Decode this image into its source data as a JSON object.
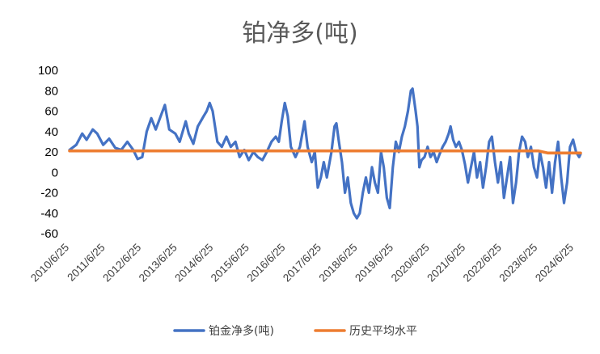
{
  "chart_data": {
    "type": "line",
    "title": "铂净多(吨)",
    "xlabel": "",
    "ylabel": "",
    "ylim": [
      -60,
      100
    ],
    "yticks": [
      -60,
      -40,
      -20,
      0,
      20,
      40,
      60,
      80,
      100
    ],
    "xlim": [
      "2010-06-25",
      "2024-08-30"
    ],
    "xtick_labels": [
      "2010/6/25",
      "2011/6/25",
      "2012/6/25",
      "2013/6/25",
      "2014/6/25",
      "2015/6/25",
      "2016/6/25",
      "2017/6/25",
      "2018/6/25",
      "2019/6/25",
      "2020/6/25",
      "2021/6/25",
      "2022/6/25",
      "2023/6/25",
      "2024/6/25"
    ],
    "grid": false,
    "legend": "bottom",
    "series": [
      {
        "name": "铂金净多(吨)",
        "color": "#4472C4",
        "points": [
          [
            "2010-06-25",
            22
          ],
          [
            "2010-09-01",
            27
          ],
          [
            "2010-11-01",
            38
          ],
          [
            "2010-12-15",
            32
          ],
          [
            "2011-02-15",
            42
          ],
          [
            "2011-04-01",
            38
          ],
          [
            "2011-06-01",
            27
          ],
          [
            "2011-08-01",
            33
          ],
          [
            "2011-10-01",
            24
          ],
          [
            "2011-12-01",
            22
          ],
          [
            "2012-02-01",
            30
          ],
          [
            "2012-04-01",
            22
          ],
          [
            "2012-05-15",
            13
          ],
          [
            "2012-07-01",
            15
          ],
          [
            "2012-08-15",
            40
          ],
          [
            "2012-10-01",
            53
          ],
          [
            "2012-11-15",
            42
          ],
          [
            "2013-01-15",
            58
          ],
          [
            "2013-02-15",
            66
          ],
          [
            "2013-04-01",
            42
          ],
          [
            "2013-06-01",
            38
          ],
          [
            "2013-07-15",
            30
          ],
          [
            "2013-09-15",
            50
          ],
          [
            "2013-10-15",
            38
          ],
          [
            "2013-12-01",
            28
          ],
          [
            "2014-01-15",
            45
          ],
          [
            "2014-03-15",
            55
          ],
          [
            "2014-04-15",
            60
          ],
          [
            "2014-05-15",
            68
          ],
          [
            "2014-06-15",
            60
          ],
          [
            "2014-08-01",
            30
          ],
          [
            "2014-09-15",
            25
          ],
          [
            "2014-11-01",
            35
          ],
          [
            "2014-12-15",
            25
          ],
          [
            "2015-02-01",
            30
          ],
          [
            "2015-03-15",
            15
          ],
          [
            "2015-05-01",
            22
          ],
          [
            "2015-06-15",
            12
          ],
          [
            "2015-08-01",
            20
          ],
          [
            "2015-09-15",
            15
          ],
          [
            "2015-11-01",
            12
          ],
          [
            "2015-12-15",
            20
          ],
          [
            "2016-02-01",
            30
          ],
          [
            "2016-03-15",
            35
          ],
          [
            "2016-04-15",
            30
          ],
          [
            "2016-05-15",
            50
          ],
          [
            "2016-06-15",
            68
          ],
          [
            "2016-07-15",
            55
          ],
          [
            "2016-08-15",
            25
          ],
          [
            "2016-10-01",
            15
          ],
          [
            "2016-11-15",
            25
          ],
          [
            "2017-01-01",
            50
          ],
          [
            "2017-02-01",
            25
          ],
          [
            "2017-03-15",
            10
          ],
          [
            "2017-04-15",
            20
          ],
          [
            "2017-05-15",
            -15
          ],
          [
            "2017-06-15",
            -5
          ],
          [
            "2017-07-15",
            10
          ],
          [
            "2017-08-15",
            -5
          ],
          [
            "2017-10-01",
            20
          ],
          [
            "2017-11-01",
            45
          ],
          [
            "2017-11-20",
            48
          ],
          [
            "2017-12-15",
            30
          ],
          [
            "2018-01-15",
            10
          ],
          [
            "2018-02-15",
            -20
          ],
          [
            "2018-03-15",
            -5
          ],
          [
            "2018-04-15",
            -30
          ],
          [
            "2018-05-15",
            -40
          ],
          [
            "2018-06-15",
            -45
          ],
          [
            "2018-07-15",
            -40
          ],
          [
            "2018-08-15",
            -20
          ],
          [
            "2018-09-15",
            -5
          ],
          [
            "2018-10-15",
            -20
          ],
          [
            "2018-11-15",
            5
          ],
          [
            "2018-12-15",
            -10
          ],
          [
            "2019-01-15",
            -20
          ],
          [
            "2019-02-15",
            20
          ],
          [
            "2019-03-15",
            5
          ],
          [
            "2019-04-15",
            -25
          ],
          [
            "2019-05-15",
            -35
          ],
          [
            "2019-06-15",
            5
          ],
          [
            "2019-07-15",
            30
          ],
          [
            "2019-08-15",
            20
          ],
          [
            "2019-09-15",
            35
          ],
          [
            "2019-10-15",
            45
          ],
          [
            "2019-11-15",
            60
          ],
          [
            "2019-12-15",
            80
          ],
          [
            "2020-01-01",
            82
          ],
          [
            "2020-02-01",
            60
          ],
          [
            "2020-02-20",
            45
          ],
          [
            "2020-03-10",
            5
          ],
          [
            "2020-04-01",
            12
          ],
          [
            "2020-05-01",
            15
          ],
          [
            "2020-06-01",
            25
          ],
          [
            "2020-07-01",
            15
          ],
          [
            "2020-08-01",
            20
          ],
          [
            "2020-09-01",
            10
          ],
          [
            "2020-10-01",
            18
          ],
          [
            "2020-11-01",
            25
          ],
          [
            "2020-12-01",
            30
          ],
          [
            "2021-01-01",
            38
          ],
          [
            "2021-01-20",
            45
          ],
          [
            "2021-02-15",
            32
          ],
          [
            "2021-03-15",
            25
          ],
          [
            "2021-04-15",
            30
          ],
          [
            "2021-05-15",
            22
          ],
          [
            "2021-06-15",
            8
          ],
          [
            "2021-07-15",
            -10
          ],
          [
            "2021-08-15",
            5
          ],
          [
            "2021-09-15",
            20
          ],
          [
            "2021-10-15",
            -5
          ],
          [
            "2021-11-15",
            10
          ],
          [
            "2021-12-15",
            -15
          ],
          [
            "2022-01-15",
            5
          ],
          [
            "2022-02-15",
            30
          ],
          [
            "2022-03-15",
            35
          ],
          [
            "2022-04-15",
            10
          ],
          [
            "2022-05-15",
            -10
          ],
          [
            "2022-06-15",
            10
          ],
          [
            "2022-07-15",
            -25
          ],
          [
            "2022-08-15",
            -5
          ],
          [
            "2022-09-15",
            15
          ],
          [
            "2022-10-15",
            -30
          ],
          [
            "2022-11-15",
            -10
          ],
          [
            "2022-12-15",
            20
          ],
          [
            "2023-01-15",
            35
          ],
          [
            "2023-02-15",
            30
          ],
          [
            "2023-03-15",
            15
          ],
          [
            "2023-04-15",
            25
          ],
          [
            "2023-05-15",
            5
          ],
          [
            "2023-06-15",
            -5
          ],
          [
            "2023-07-15",
            20
          ],
          [
            "2023-08-15",
            5
          ],
          [
            "2023-09-15",
            -15
          ],
          [
            "2023-10-15",
            10
          ],
          [
            "2023-11-15",
            -20
          ],
          [
            "2023-12-15",
            10
          ],
          [
            "2024-01-15",
            30
          ],
          [
            "2024-02-15",
            -5
          ],
          [
            "2024-03-15",
            -30
          ],
          [
            "2024-04-15",
            -10
          ],
          [
            "2024-05-15",
            25
          ],
          [
            "2024-06-15",
            32
          ],
          [
            "2024-07-15",
            20
          ],
          [
            "2024-08-15",
            15
          ],
          [
            "2024-08-30",
            18
          ]
        ]
      },
      {
        "name": "历史平均水平",
        "color": "#ED7D31",
        "points": [
          [
            "2010-06-25",
            21
          ],
          [
            "2023-07-01",
            21
          ],
          [
            "2023-10-01",
            19
          ],
          [
            "2024-08-30",
            19
          ]
        ]
      }
    ]
  }
}
